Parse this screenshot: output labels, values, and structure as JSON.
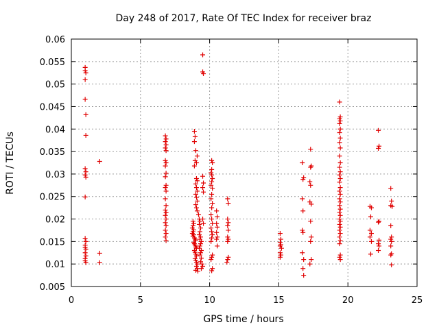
{
  "chart_data": {
    "type": "scatter",
    "title": "Day 248 of 2017, Rate Of TEC Index for receiver braz",
    "xlabel": "GPS time / hours",
    "ylabel": "ROTI / TECUs",
    "xlim": [
      0,
      25
    ],
    "ylim": [
      0.005,
      0.06
    ],
    "xticks": [
      "0",
      "5",
      "10",
      "15",
      "20",
      "25"
    ],
    "yticks": [
      "0.005",
      "0.01",
      "0.015",
      "0.02",
      "0.025",
      "0.03",
      "0.035",
      "0.04",
      "0.045",
      "0.05",
      "0.055",
      "0.06"
    ],
    "grid": true,
    "marker": "+",
    "color": "#e00000",
    "points": [
      [
        1.0,
        0.0537
      ],
      [
        1.0,
        0.053
      ],
      [
        1.05,
        0.0525
      ],
      [
        1.0,
        0.051
      ],
      [
        1.0,
        0.0466
      ],
      [
        1.05,
        0.0432
      ],
      [
        1.05,
        0.0386
      ],
      [
        1.0,
        0.0312
      ],
      [
        1.05,
        0.0305
      ],
      [
        1.0,
        0.0298
      ],
      [
        1.05,
        0.0293
      ],
      [
        1.0,
        0.0249
      ],
      [
        1.0,
        0.0157
      ],
      [
        1.05,
        0.015
      ],
      [
        1.0,
        0.0142
      ],
      [
        1.0,
        0.0137
      ],
      [
        1.05,
        0.0133
      ],
      [
        1.0,
        0.0125
      ],
      [
        1.05,
        0.0118
      ],
      [
        1.0,
        0.0112
      ],
      [
        1.0,
        0.0107
      ],
      [
        1.05,
        0.0103
      ],
      [
        2.05,
        0.0328
      ],
      [
        2.05,
        0.0124
      ],
      [
        2.05,
        0.0103
      ],
      [
        6.8,
        0.0385
      ],
      [
        6.85,
        0.0378
      ],
      [
        6.8,
        0.0372
      ],
      [
        6.85,
        0.0365
      ],
      [
        6.8,
        0.0358
      ],
      [
        6.85,
        0.0352
      ],
      [
        6.8,
        0.033
      ],
      [
        6.85,
        0.0325
      ],
      [
        6.8,
        0.0318
      ],
      [
        6.85,
        0.0302
      ],
      [
        6.8,
        0.0294
      ],
      [
        6.85,
        0.0275
      ],
      [
        6.8,
        0.027
      ],
      [
        6.85,
        0.0262
      ],
      [
        6.8,
        0.0245
      ],
      [
        6.85,
        0.023
      ],
      [
        6.8,
        0.022
      ],
      [
        6.85,
        0.0214
      ],
      [
        6.8,
        0.0208
      ],
      [
        6.85,
        0.02
      ],
      [
        6.8,
        0.0192
      ],
      [
        6.85,
        0.0185
      ],
      [
        6.8,
        0.0175
      ],
      [
        6.85,
        0.0168
      ],
      [
        6.8,
        0.016
      ],
      [
        6.85,
        0.0152
      ],
      [
        8.9,
        0.0395
      ],
      [
        8.95,
        0.0383
      ],
      [
        8.9,
        0.0372
      ],
      [
        9.0,
        0.0352
      ],
      [
        8.95,
        0.033
      ],
      [
        9.05,
        0.0325
      ],
      [
        8.9,
        0.0318
      ],
      [
        9.1,
        0.034
      ],
      [
        9.05,
        0.029
      ],
      [
        9.1,
        0.0285
      ],
      [
        9.0,
        0.0278
      ],
      [
        9.05,
        0.027
      ],
      [
        9.1,
        0.0262
      ],
      [
        9.0,
        0.0255
      ],
      [
        9.05,
        0.0248
      ],
      [
        9.1,
        0.024
      ],
      [
        9.0,
        0.0232
      ],
      [
        9.05,
        0.0225
      ],
      [
        9.1,
        0.0218
      ],
      [
        8.8,
        0.0195
      ],
      [
        8.85,
        0.019
      ],
      [
        8.8,
        0.0185
      ],
      [
        8.75,
        0.018
      ],
      [
        8.85,
        0.0176
      ],
      [
        8.8,
        0.0172
      ],
      [
        8.75,
        0.0168
      ],
      [
        8.85,
        0.0165
      ],
      [
        8.8,
        0.0162
      ],
      [
        8.9,
        0.0158
      ],
      [
        8.95,
        0.0155
      ],
      [
        9.0,
        0.0152
      ],
      [
        8.85,
        0.0148
      ],
      [
        8.9,
        0.0145
      ],
      [
        8.95,
        0.0142
      ],
      [
        9.0,
        0.0138
      ],
      [
        9.05,
        0.0135
      ],
      [
        8.9,
        0.013
      ],
      [
        8.95,
        0.0126
      ],
      [
        9.0,
        0.0122
      ],
      [
        9.05,
        0.0118
      ],
      [
        8.95,
        0.0112
      ],
      [
        9.0,
        0.0108
      ],
      [
        9.05,
        0.0104
      ],
      [
        9.1,
        0.01
      ],
      [
        9.05,
        0.0095
      ],
      [
        9.1,
        0.009
      ],
      [
        9.0,
        0.0086
      ],
      [
        9.15,
        0.0084
      ],
      [
        9.2,
        0.021
      ],
      [
        9.25,
        0.02
      ],
      [
        9.3,
        0.0195
      ],
      [
        9.25,
        0.0188
      ],
      [
        9.35,
        0.018
      ],
      [
        9.3,
        0.0172
      ],
      [
        9.25,
        0.0165
      ],
      [
        9.35,
        0.016
      ],
      [
        9.3,
        0.0155
      ],
      [
        9.4,
        0.015
      ],
      [
        9.35,
        0.0145
      ],
      [
        9.3,
        0.014
      ],
      [
        9.25,
        0.0135
      ],
      [
        9.4,
        0.013
      ],
      [
        9.35,
        0.0125
      ],
      [
        9.3,
        0.012
      ],
      [
        9.4,
        0.0113
      ],
      [
        9.35,
        0.0105
      ],
      [
        9.45,
        0.01
      ],
      [
        9.5,
        0.0095
      ],
      [
        9.4,
        0.009
      ],
      [
        9.5,
        0.0565
      ],
      [
        9.5,
        0.0527
      ],
      [
        9.55,
        0.0523
      ],
      [
        9.5,
        0.0295
      ],
      [
        9.55,
        0.028
      ],
      [
        9.5,
        0.027
      ],
      [
        9.55,
        0.026
      ],
      [
        9.5,
        0.02
      ],
      [
        9.55,
        0.019
      ],
      [
        10.15,
        0.033
      ],
      [
        10.2,
        0.0325
      ],
      [
        10.15,
        0.031
      ],
      [
        10.1,
        0.0303
      ],
      [
        10.15,
        0.0298
      ],
      [
        10.2,
        0.029
      ],
      [
        10.15,
        0.0283
      ],
      [
        10.1,
        0.0275
      ],
      [
        10.2,
        0.0268
      ],
      [
        10.15,
        0.0255
      ],
      [
        10.1,
        0.0245
      ],
      [
        10.2,
        0.0235
      ],
      [
        10.15,
        0.0225
      ],
      [
        10.1,
        0.021
      ],
      [
        10.15,
        0.02
      ],
      [
        10.2,
        0.019
      ],
      [
        10.1,
        0.018
      ],
      [
        10.15,
        0.0172
      ],
      [
        10.2,
        0.0165
      ],
      [
        10.15,
        0.0158
      ],
      [
        10.1,
        0.015
      ],
      [
        10.2,
        0.012
      ],
      [
        10.15,
        0.0115
      ],
      [
        10.1,
        0.011
      ],
      [
        10.2,
        0.009
      ],
      [
        10.15,
        0.0085
      ],
      [
        10.5,
        0.0218
      ],
      [
        10.55,
        0.0205
      ],
      [
        10.5,
        0.019
      ],
      [
        10.55,
        0.0182
      ],
      [
        10.5,
        0.017
      ],
      [
        10.55,
        0.016
      ],
      [
        10.5,
        0.0155
      ],
      [
        10.55,
        0.014
      ],
      [
        11.3,
        0.0245
      ],
      [
        11.35,
        0.0235
      ],
      [
        11.3,
        0.02
      ],
      [
        11.35,
        0.0192
      ],
      [
        11.3,
        0.0185
      ],
      [
        11.35,
        0.0175
      ],
      [
        11.3,
        0.016
      ],
      [
        11.35,
        0.0155
      ],
      [
        11.3,
        0.015
      ],
      [
        11.35,
        0.0115
      ],
      [
        11.3,
        0.011
      ],
      [
        11.25,
        0.0104
      ],
      [
        15.1,
        0.0168
      ],
      [
        15.15,
        0.0155
      ],
      [
        15.1,
        0.0148
      ],
      [
        15.15,
        0.0143
      ],
      [
        15.1,
        0.014
      ],
      [
        15.2,
        0.0135
      ],
      [
        15.1,
        0.0125
      ],
      [
        15.15,
        0.012
      ],
      [
        15.1,
        0.0115
      ],
      [
        16.7,
        0.0325
      ],
      [
        16.8,
        0.0292
      ],
      [
        16.75,
        0.0288
      ],
      [
        16.7,
        0.0245
      ],
      [
        16.75,
        0.0218
      ],
      [
        16.7,
        0.0175
      ],
      [
        16.75,
        0.017
      ],
      [
        16.7,
        0.0125
      ],
      [
        16.8,
        0.011
      ],
      [
        16.75,
        0.009
      ],
      [
        16.8,
        0.0075
      ],
      [
        17.3,
        0.0355
      ],
      [
        17.35,
        0.0318
      ],
      [
        17.3,
        0.0315
      ],
      [
        17.25,
        0.0283
      ],
      [
        17.3,
        0.0275
      ],
      [
        17.25,
        0.0238
      ],
      [
        17.35,
        0.0233
      ],
      [
        17.3,
        0.0195
      ],
      [
        17.35,
        0.016
      ],
      [
        17.3,
        0.015
      ],
      [
        17.35,
        0.011
      ],
      [
        17.25,
        0.01
      ],
      [
        19.4,
        0.046
      ],
      [
        19.45,
        0.0427
      ],
      [
        19.4,
        0.0423
      ],
      [
        19.45,
        0.0418
      ],
      [
        19.4,
        0.0412
      ],
      [
        19.45,
        0.04
      ],
      [
        19.4,
        0.0392
      ],
      [
        19.45,
        0.038
      ],
      [
        19.4,
        0.037
      ],
      [
        19.45,
        0.0358
      ],
      [
        19.4,
        0.034
      ],
      [
        19.45,
        0.0325
      ],
      [
        19.4,
        0.0315
      ],
      [
        19.45,
        0.0305
      ],
      [
        19.4,
        0.0298
      ],
      [
        19.45,
        0.029
      ],
      [
        19.4,
        0.0282
      ],
      [
        19.45,
        0.027
      ],
      [
        19.4,
        0.0262
      ],
      [
        19.45,
        0.0255
      ],
      [
        19.4,
        0.0245
      ],
      [
        19.45,
        0.0238
      ],
      [
        19.4,
        0.023
      ],
      [
        19.45,
        0.0222
      ],
      [
        19.4,
        0.0215
      ],
      [
        19.45,
        0.0208
      ],
      [
        19.4,
        0.02
      ],
      [
        19.45,
        0.0195
      ],
      [
        19.4,
        0.0188
      ],
      [
        19.45,
        0.0182
      ],
      [
        19.4,
        0.0175
      ],
      [
        19.45,
        0.0168
      ],
      [
        19.4,
        0.016
      ],
      [
        19.45,
        0.0152
      ],
      [
        19.4,
        0.0145
      ],
      [
        19.45,
        0.012
      ],
      [
        19.4,
        0.0115
      ],
      [
        19.45,
        0.011
      ],
      [
        21.6,
        0.0228
      ],
      [
        21.7,
        0.0225
      ],
      [
        21.65,
        0.0205
      ],
      [
        21.6,
        0.0175
      ],
      [
        21.7,
        0.0168
      ],
      [
        21.6,
        0.016
      ],
      [
        21.7,
        0.015
      ],
      [
        21.65,
        0.0122
      ],
      [
        22.2,
        0.0397
      ],
      [
        22.25,
        0.0362
      ],
      [
        22.2,
        0.0357
      ],
      [
        22.25,
        0.0195
      ],
      [
        22.2,
        0.0193
      ],
      [
        22.25,
        0.0153
      ],
      [
        22.2,
        0.0145
      ],
      [
        22.25,
        0.014
      ],
      [
        22.2,
        0.013
      ],
      [
        23.1,
        0.0268
      ],
      [
        23.15,
        0.024
      ],
      [
        23.1,
        0.023
      ],
      [
        23.2,
        0.0228
      ],
      [
        23.1,
        0.0185
      ],
      [
        23.15,
        0.016
      ],
      [
        23.1,
        0.0155
      ],
      [
        23.15,
        0.015
      ],
      [
        23.1,
        0.014
      ],
      [
        23.15,
        0.0123
      ],
      [
        23.1,
        0.012
      ],
      [
        23.15,
        0.0098
      ]
    ]
  }
}
